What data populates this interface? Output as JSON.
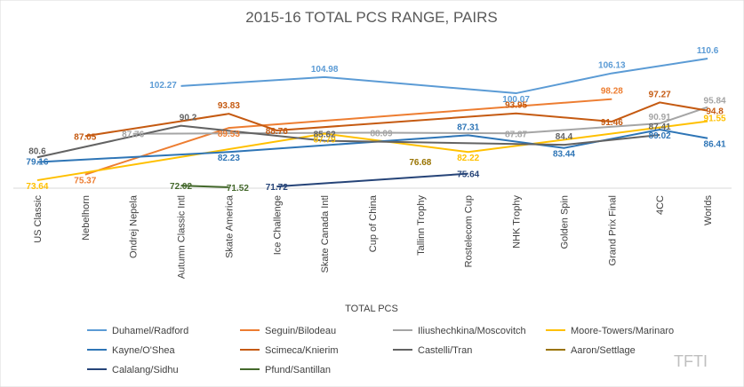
{
  "chart_data": {
    "type": "line",
    "title": "2015-16 TOTAL PCS RANGE, PAIRS",
    "xlabel": "TOTAL PCS",
    "ylabel": "",
    "categories": [
      "US Classic",
      "Nebelhorn",
      "Ondrej Nepela",
      "Autumn Classic Intl",
      "Skate America",
      "Ice Challenge",
      "Skate Canada Intl",
      "Cup of China",
      "Tallinn Trophy",
      "Rostelecom Cup",
      "NHK Trophy",
      "Golden Spin",
      "Grand Prix Final",
      "4CC",
      "Worlds"
    ],
    "ylim": [
      65,
      115
    ],
    "grid": false,
    "legend_position": "bottom",
    "series": [
      {
        "name": "Duhamel/Radford",
        "color": "#5b9bd5",
        "points": [
          [
            3,
            102.27
          ],
          [
            6,
            104.98
          ],
          [
            10,
            100.07
          ],
          [
            12,
            106.13
          ],
          [
            14,
            110.6
          ]
        ],
        "labels": [
          [
            3,
            "102.27"
          ],
          [
            6,
            "104.98"
          ],
          [
            10,
            "100.07"
          ],
          [
            12,
            "106.13"
          ],
          [
            14,
            "110.6"
          ]
        ]
      },
      {
        "name": "Seguin/Bilodeau",
        "color": "#ed7d31",
        "points": [
          [
            1,
            75.37
          ],
          [
            4,
            89.53
          ],
          [
            12,
            98.28
          ]
        ],
        "labels": [
          [
            1,
            "75.37"
          ],
          [
            4,
            "89.53"
          ],
          [
            12,
            "98.28"
          ]
        ]
      },
      {
        "name": "Iliushechkina/Moscovitch",
        "color": "#a5a5a5",
        "points": [
          [
            2,
            87.76
          ],
          [
            7,
            88.09
          ],
          [
            10,
            87.87
          ],
          [
            13,
            90.91
          ],
          [
            14,
            95.84
          ]
        ],
        "labels": [
          [
            2,
            "87.76"
          ],
          [
            7,
            "88.09"
          ],
          [
            10,
            "87.87"
          ],
          [
            13,
            "90.91"
          ],
          [
            14,
            "95.84"
          ]
        ]
      },
      {
        "name": "Moore-Towers/Marinaro",
        "color": "#ffc000",
        "points": [
          [
            0,
            73.64
          ],
          [
            6,
            87.79
          ],
          [
            9,
            82.22
          ],
          [
            14,
            91.55
          ]
        ],
        "labels": [
          [
            0,
            "73.64"
          ],
          [
            6,
            "87.79"
          ],
          [
            9,
            "82.22"
          ],
          [
            14,
            "91.55"
          ]
        ]
      },
      {
        "name": "Kayne/O'Shea",
        "color": "#2e75b6",
        "points": [
          [
            0,
            79.16
          ],
          [
            4,
            82.23
          ],
          [
            9,
            87.31
          ],
          [
            11,
            83.44
          ],
          [
            13,
            89.02
          ],
          [
            14,
            86.41
          ]
        ],
        "labels": [
          [
            0,
            "79.16"
          ],
          [
            4,
            "82.23"
          ],
          [
            9,
            "87.31"
          ],
          [
            11,
            "83.44"
          ],
          [
            13,
            "89.02"
          ],
          [
            14,
            "86.41"
          ]
        ]
      },
      {
        "name": "Scimeca/Knierim",
        "color": "#c55a11",
        "points": [
          [
            1,
            87.05
          ],
          [
            4,
            93.83
          ],
          [
            5,
            88.76
          ],
          [
            10,
            93.95
          ],
          [
            12,
            91.46
          ],
          [
            13,
            97.27
          ],
          [
            14,
            94.8
          ]
        ],
        "labels": [
          [
            1,
            "87.05"
          ],
          [
            4,
            "93.83"
          ],
          [
            5,
            "88.76"
          ],
          [
            10,
            "93.95"
          ],
          [
            12,
            "91.46"
          ],
          [
            13,
            "97.27"
          ],
          [
            14,
            "94.8"
          ]
        ]
      },
      {
        "name": "Castelli/Tran",
        "color": "#636363",
        "points": [
          [
            0,
            80.6
          ],
          [
            3,
            90.2
          ],
          [
            6,
            85.62
          ],
          [
            11,
            84.4
          ],
          [
            13,
            87.41
          ]
        ],
        "labels": [
          [
            0,
            "80.6"
          ],
          [
            3,
            "90.2"
          ],
          [
            6,
            "85.62"
          ],
          [
            11,
            "84.4"
          ],
          [
            13,
            "87.41"
          ]
        ]
      },
      {
        "name": "Aaron/Settlage",
        "color": "#997300",
        "points": [
          [
            8,
            76.68
          ]
        ],
        "labels": [
          [
            8,
            "76.68"
          ]
        ]
      },
      {
        "name": "Calalang/Sidhu",
        "color": "#264478",
        "points": [
          [
            5,
            71.72
          ],
          [
            9,
            75.64
          ]
        ],
        "labels": [
          [
            5,
            "71.72"
          ],
          [
            9,
            "75.64"
          ]
        ]
      },
      {
        "name": "Pfund/Santillan",
        "color": "#43682b",
        "points": [
          [
            3,
            72.02
          ],
          [
            4,
            71.52
          ]
        ],
        "labels": [
          [
            3,
            "72.02"
          ],
          [
            4,
            "71.52"
          ]
        ]
      }
    ]
  },
  "watermark": "TFTI"
}
